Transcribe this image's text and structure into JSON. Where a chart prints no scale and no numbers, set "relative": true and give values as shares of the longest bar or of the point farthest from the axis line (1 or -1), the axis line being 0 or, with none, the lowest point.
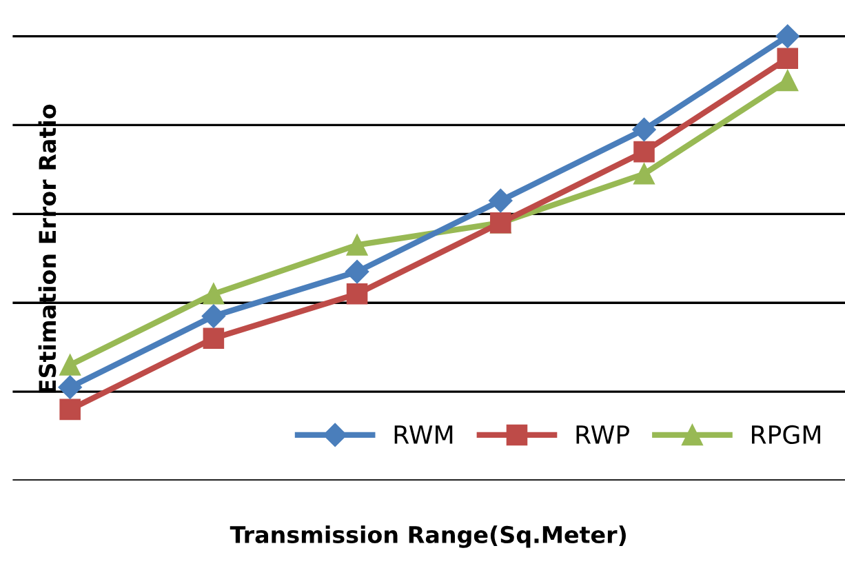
{
  "chart_data": {
    "type": "line",
    "relative": true,
    "xlabel": "Transmission Range(Sq.Meter)",
    "ylabel": "EStimation Error Ratio",
    "categories": [
      null,
      null,
      null,
      null,
      null,
      null
    ],
    "grid": "y",
    "legend": "bottom right",
    "line_style": "solid",
    "series": [
      {
        "name": "RWM",
        "color": "#4a7ebb",
        "marker": "diamond",
        "values": [
          0.21,
          0.37,
          0.47,
          0.63,
          0.79,
          1
        ]
      },
      {
        "name": "RWP",
        "color": "#be4b48",
        "marker": "square",
        "values": [
          0.16,
          0.32,
          0.42,
          0.58,
          0.74,
          0.95
        ]
      },
      {
        "name": "RPGM",
        "color": "#98b954",
        "marker": "triangle",
        "values": [
          0.26,
          0.42,
          0.53,
          0.58,
          0.69,
          0.9
        ]
      }
    ]
  }
}
